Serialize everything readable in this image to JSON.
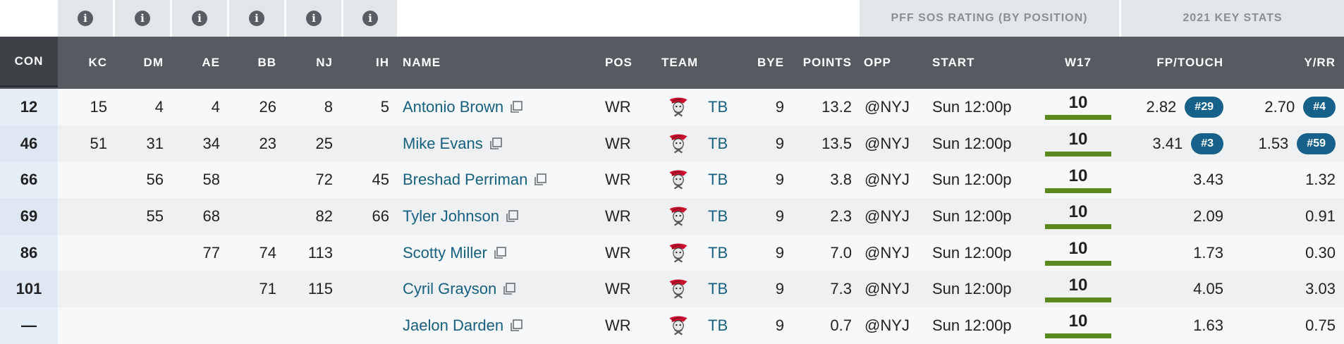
{
  "info_icon_glyph": "i",
  "groups": {
    "sos": "PFF SOS RATING (BY POSITION)",
    "key_stats": "2021 KEY STATS"
  },
  "headers": {
    "con": "CON",
    "kc": "KC",
    "dm": "DM",
    "ae": "AE",
    "bb": "BB",
    "nj": "NJ",
    "ih": "IH",
    "name": "NAME",
    "pos": "POS",
    "team": "TEAM",
    "bye": "BYE",
    "points": "POINTS",
    "opp": "OPP",
    "start": "START",
    "w17": "W17",
    "fp_touch": "FP/TOUCH",
    "y_rr": "Y/RR"
  },
  "colors": {
    "header_bg": "#575b61",
    "link": "#17607f",
    "pill": "#16618a",
    "sos_bar": "#5a8a1e"
  },
  "rows": [
    {
      "con": "12",
      "kc": "15",
      "dm": "4",
      "ae": "4",
      "bb": "26",
      "nj": "8",
      "ih": "5",
      "name": "Antonio Brown",
      "pos": "WR",
      "team": "TB",
      "bye": "9",
      "points": "13.2",
      "opp": "@NYJ",
      "start": "Sun 12:00p",
      "w17": "10",
      "fp_touch": "2.82",
      "fp_rank": "#29",
      "y_rr": "2.70",
      "y_rank": "#4"
    },
    {
      "con": "46",
      "kc": "51",
      "dm": "31",
      "ae": "34",
      "bb": "23",
      "nj": "25",
      "ih": "",
      "name": "Mike Evans",
      "pos": "WR",
      "team": "TB",
      "bye": "9",
      "points": "13.5",
      "opp": "@NYJ",
      "start": "Sun 12:00p",
      "w17": "10",
      "fp_touch": "3.41",
      "fp_rank": "#3",
      "y_rr": "1.53",
      "y_rank": "#59"
    },
    {
      "con": "66",
      "kc": "",
      "dm": "56",
      "ae": "58",
      "bb": "",
      "nj": "72",
      "ih": "45",
      "name": "Breshad Perriman",
      "pos": "WR",
      "team": "TB",
      "bye": "9",
      "points": "3.8",
      "opp": "@NYJ",
      "start": "Sun 12:00p",
      "w17": "10",
      "fp_touch": "3.43",
      "fp_rank": "",
      "y_rr": "1.32",
      "y_rank": ""
    },
    {
      "con": "69",
      "kc": "",
      "dm": "55",
      "ae": "68",
      "bb": "",
      "nj": "82",
      "ih": "66",
      "name": "Tyler Johnson",
      "pos": "WR",
      "team": "TB",
      "bye": "9",
      "points": "2.3",
      "opp": "@NYJ",
      "start": "Sun 12:00p",
      "w17": "10",
      "fp_touch": "2.09",
      "fp_rank": "",
      "y_rr": "0.91",
      "y_rank": ""
    },
    {
      "con": "86",
      "kc": "",
      "dm": "",
      "ae": "77",
      "bb": "74",
      "nj": "113",
      "ih": "",
      "name": "Scotty Miller",
      "pos": "WR",
      "team": "TB",
      "bye": "9",
      "points": "7.0",
      "opp": "@NYJ",
      "start": "Sun 12:00p",
      "w17": "10",
      "fp_touch": "1.73",
      "fp_rank": "",
      "y_rr": "0.30",
      "y_rank": ""
    },
    {
      "con": "101",
      "kc": "",
      "dm": "",
      "ae": "",
      "bb": "71",
      "nj": "115",
      "ih": "",
      "name": "Cyril Grayson",
      "pos": "WR",
      "team": "TB",
      "bye": "9",
      "points": "7.3",
      "opp": "@NYJ",
      "start": "Sun 12:00p",
      "w17": "10",
      "fp_touch": "4.05",
      "fp_rank": "",
      "y_rr": "3.03",
      "y_rank": ""
    },
    {
      "con": "—",
      "kc": "",
      "dm": "",
      "ae": "",
      "bb": "",
      "nj": "",
      "ih": "",
      "name": "Jaelon Darden",
      "pos": "WR",
      "team": "TB",
      "bye": "9",
      "points": "0.7",
      "opp": "@NYJ",
      "start": "Sun 12:00p",
      "w17": "10",
      "fp_touch": "1.63",
      "fp_rank": "",
      "y_rr": "0.75",
      "y_rank": ""
    }
  ]
}
